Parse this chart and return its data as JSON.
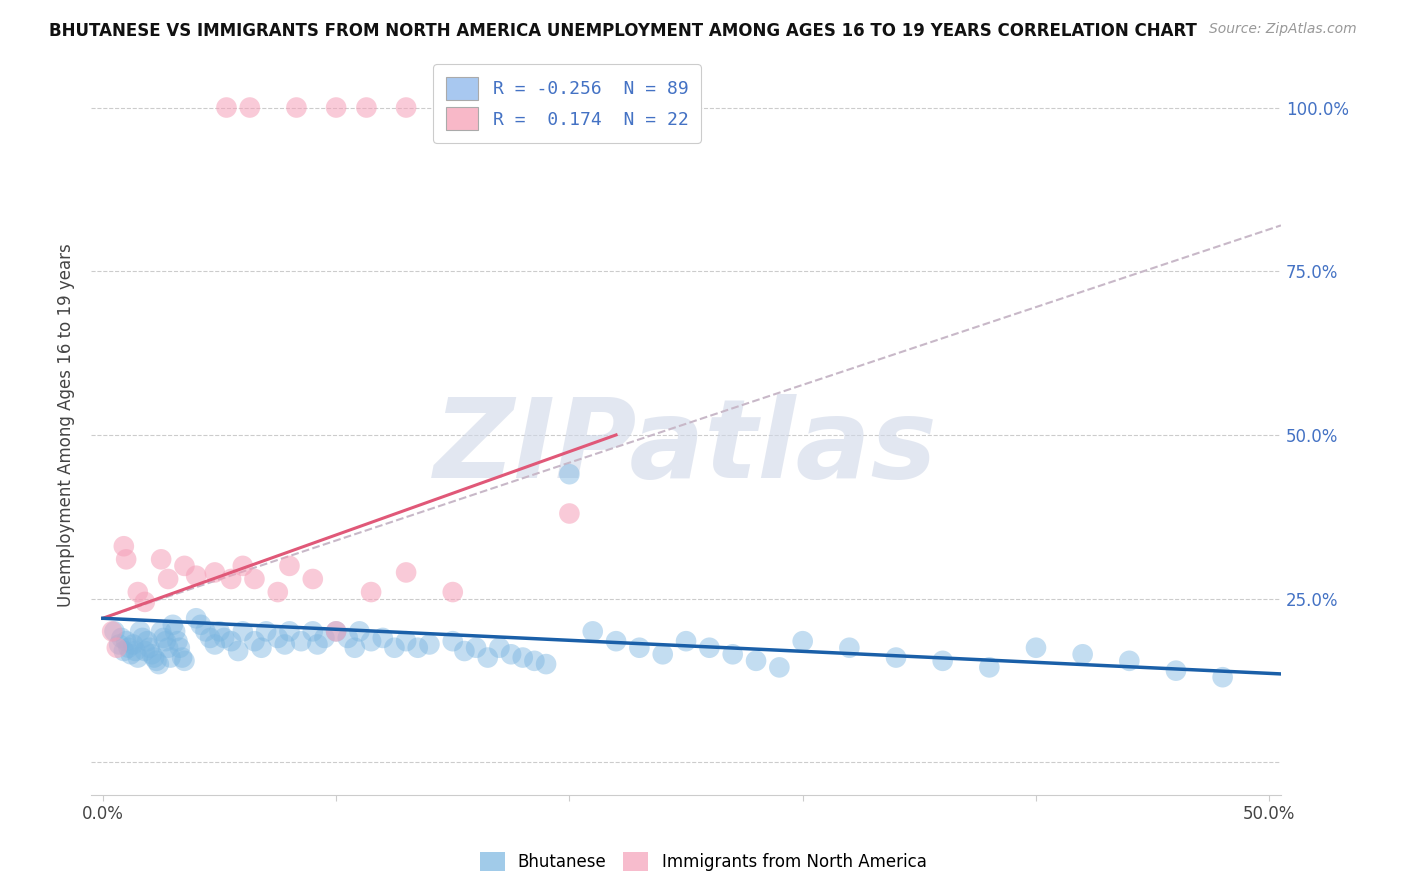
{
  "title": "BHUTANESE VS IMMIGRANTS FROM NORTH AMERICA UNEMPLOYMENT AMONG AGES 16 TO 19 YEARS CORRELATION CHART",
  "source": "Source: ZipAtlas.com",
  "ylabel": "Unemployment Among Ages 16 to 19 years",
  "xlim": [
    -0.005,
    0.505
  ],
  "ylim": [
    -0.05,
    1.08
  ],
  "xticks": [
    0.0,
    0.1,
    0.2,
    0.3,
    0.4,
    0.5
  ],
  "xtick_labels": [
    "0.0%",
    "",
    "",
    "",
    "",
    "50.0%"
  ],
  "yticks": [
    0.0,
    0.25,
    0.5,
    0.75,
    1.0
  ],
  "ytick_labels": [
    "",
    "25.0%",
    "50.0%",
    "75.0%",
    "100.0%"
  ],
  "legend_blue_color": "#a8c8f0",
  "legend_pink_color": "#f8b8c8",
  "blue_color": "#7ab5e0",
  "pink_color": "#f5a0b8",
  "blue_line_color": "#1a5fa8",
  "pink_line_color": "#e05878",
  "dashed_line_color": "#c8b8c8",
  "watermark": "ZIPatlas",
  "watermark_color": "#d0d8e8",
  "blue_scatter_x": [
    0.005,
    0.007,
    0.008,
    0.009,
    0.01,
    0.011,
    0.012,
    0.013,
    0.014,
    0.015,
    0.016,
    0.017,
    0.018,
    0.019,
    0.02,
    0.021,
    0.022,
    0.023,
    0.024,
    0.025,
    0.026,
    0.027,
    0.028,
    0.029,
    0.03,
    0.031,
    0.032,
    0.033,
    0.034,
    0.035,
    0.04,
    0.042,
    0.044,
    0.046,
    0.048,
    0.05,
    0.052,
    0.055,
    0.058,
    0.06,
    0.065,
    0.068,
    0.07,
    0.075,
    0.078,
    0.08,
    0.085,
    0.09,
    0.092,
    0.095,
    0.1,
    0.105,
    0.108,
    0.11,
    0.115,
    0.12,
    0.125,
    0.13,
    0.135,
    0.14,
    0.15,
    0.155,
    0.16,
    0.165,
    0.17,
    0.175,
    0.18,
    0.185,
    0.19,
    0.2,
    0.21,
    0.22,
    0.23,
    0.24,
    0.25,
    0.26,
    0.27,
    0.28,
    0.29,
    0.3,
    0.32,
    0.34,
    0.36,
    0.38,
    0.4,
    0.42,
    0.44,
    0.46,
    0.48
  ],
  "blue_scatter_y": [
    0.2,
    0.18,
    0.19,
    0.17,
    0.185,
    0.175,
    0.165,
    0.18,
    0.17,
    0.16,
    0.2,
    0.19,
    0.17,
    0.185,
    0.175,
    0.165,
    0.16,
    0.155,
    0.15,
    0.2,
    0.19,
    0.185,
    0.175,
    0.16,
    0.21,
    0.2,
    0.185,
    0.175,
    0.16,
    0.155,
    0.22,
    0.21,
    0.2,
    0.19,
    0.18,
    0.2,
    0.19,
    0.185,
    0.17,
    0.2,
    0.185,
    0.175,
    0.2,
    0.19,
    0.18,
    0.2,
    0.185,
    0.2,
    0.18,
    0.19,
    0.2,
    0.19,
    0.175,
    0.2,
    0.185,
    0.19,
    0.175,
    0.185,
    0.175,
    0.18,
    0.185,
    0.17,
    0.175,
    0.16,
    0.175,
    0.165,
    0.16,
    0.155,
    0.15,
    0.44,
    0.2,
    0.185,
    0.175,
    0.165,
    0.185,
    0.175,
    0.165,
    0.155,
    0.145,
    0.185,
    0.175,
    0.16,
    0.155,
    0.145,
    0.175,
    0.165,
    0.155,
    0.14,
    0.13
  ],
  "pink_scatter_x": [
    0.004,
    0.006,
    0.009,
    0.01,
    0.015,
    0.018,
    0.025,
    0.028,
    0.035,
    0.04,
    0.048,
    0.055,
    0.06,
    0.065,
    0.075,
    0.08,
    0.09,
    0.1,
    0.115,
    0.13,
    0.15,
    0.2
  ],
  "pink_scatter_y": [
    0.2,
    0.175,
    0.33,
    0.31,
    0.26,
    0.245,
    0.31,
    0.28,
    0.3,
    0.285,
    0.29,
    0.28,
    0.3,
    0.28,
    0.26,
    0.3,
    0.28,
    0.2,
    0.26,
    0.29,
    0.26,
    0.38
  ],
  "pink_outlier_x": [
    0.053,
    0.063,
    0.083,
    0.1,
    0.113,
    0.13
  ],
  "pink_outlier_y": [
    1.0,
    1.0,
    1.0,
    1.0,
    1.0,
    1.0
  ],
  "blue_trend_x0": 0.0,
  "blue_trend_x1": 0.505,
  "blue_trend_y0": 0.22,
  "blue_trend_y1": 0.135,
  "pink_trend_x0": 0.0,
  "pink_trend_x1": 0.22,
  "pink_trend_y0": 0.22,
  "pink_trend_y1": 0.5,
  "dashed_trend_x0": 0.0,
  "dashed_trend_x1": 0.505,
  "dashed_trend_y0": 0.22,
  "dashed_trend_y1": 0.82
}
